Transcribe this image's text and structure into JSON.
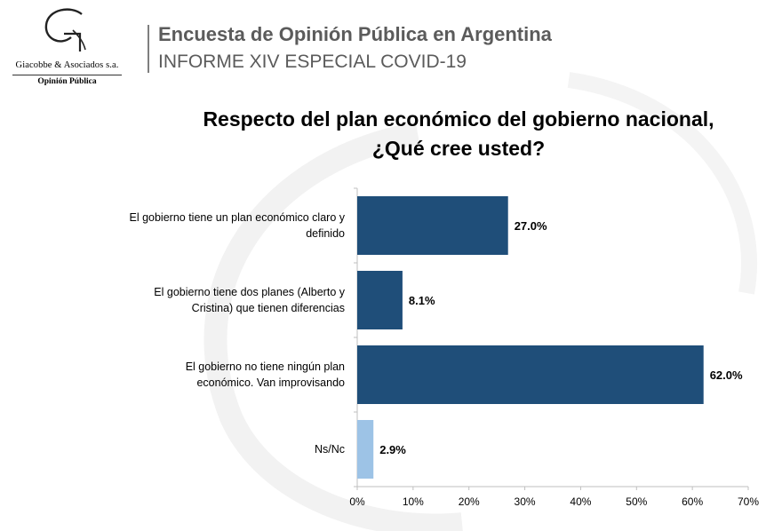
{
  "header": {
    "logo": {
      "company": "Giacobbe & Asociados s.a.",
      "division": "Opinión Pública"
    },
    "title": "Encuesta de Opinión Pública en Argentina",
    "subtitle": "INFORME XIV ESPECIAL COVID-19"
  },
  "chart_data": {
    "type": "bar",
    "orientation": "horizontal",
    "title_lines": [
      "Respecto del plan económico del gobierno nacional,",
      "¿Qué cree usted?"
    ],
    "categories": [
      [
        "El gobierno tiene un plan económico claro y",
        "definido"
      ],
      [
        "El gobierno tiene dos planes (Alberto y",
        "Cristina) que tienen diferencias"
      ],
      [
        "El gobierno no tiene ningún plan",
        "económico. Van improvisando"
      ],
      [
        "Ns/Nc"
      ]
    ],
    "values": [
      27.0,
      8.1,
      62.0,
      2.9
    ],
    "value_labels": [
      "27.0%",
      "8.1%",
      "62.0%",
      "2.9%"
    ],
    "bar_colors": [
      "#1f4e79",
      "#1f4e79",
      "#1f4e79",
      "#9dc3e6"
    ],
    "xlim": [
      0,
      70
    ],
    "xticks": [
      0,
      10,
      20,
      30,
      40,
      50,
      60,
      70
    ],
    "xtick_labels": [
      "0%",
      "10%",
      "20%",
      "30%",
      "40%",
      "50%",
      "60%",
      "70%"
    ],
    "grid": false,
    "legend": "none"
  }
}
